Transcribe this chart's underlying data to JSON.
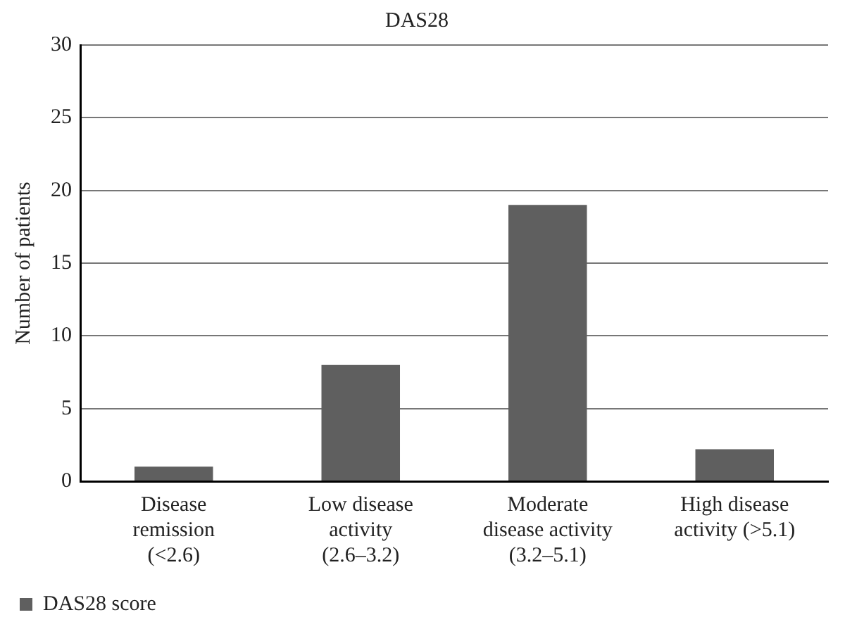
{
  "chart_data": {
    "type": "bar",
    "title": "DAS28",
    "ylabel": "Number of patients",
    "categories": [
      "Disease\nremission\n(<2.6)",
      "Low disease\nactivity\n(2.6–3.2)",
      "Moderate\ndisease activity\n(3.2–5.1)",
      "High disease\nactivity (>5.1)"
    ],
    "series": [
      {
        "name": "DAS28 score",
        "color": "#5f5f5f",
        "values": [
          1,
          8,
          19,
          2.2
        ]
      }
    ],
    "ylim": [
      0,
      30
    ],
    "yticks": [
      0,
      5,
      10,
      15,
      20,
      25,
      30
    ],
    "grid": "y",
    "legend": "bottom left"
  }
}
